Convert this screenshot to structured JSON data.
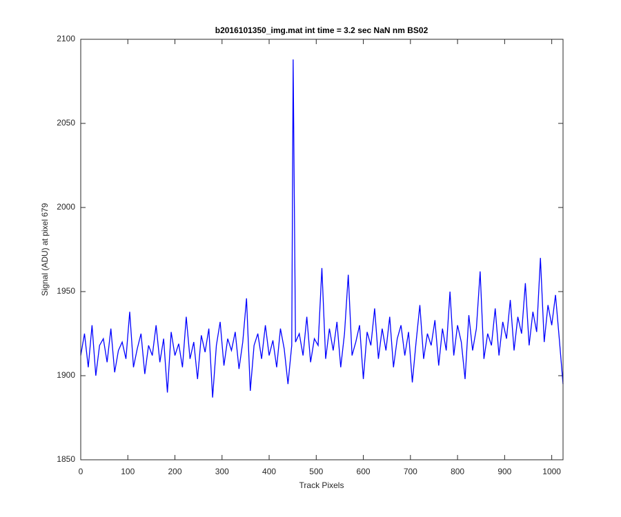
{
  "chart_data": {
    "type": "line",
    "title": "b2016101350_img.mat int time = 3.2 sec  NaN nm BS02",
    "x_label": "Track Pixels",
    "y_label": "Signal (ADU) at pixel 679",
    "xlim": [
      0,
      1024
    ],
    "xticks": [
      0,
      100,
      200,
      300,
      400,
      500,
      600,
      700,
      800,
      900,
      1000
    ],
    "ylim": [
      1850,
      2100
    ],
    "yticks": [
      1850,
      1900,
      1950,
      2000,
      2050,
      2100
    ],
    "x": [
      0,
      8,
      16,
      24,
      32,
      40,
      48,
      56,
      64,
      72,
      80,
      88,
      96,
      104,
      112,
      120,
      128,
      136,
      144,
      152,
      160,
      168,
      176,
      184,
      192,
      200,
      208,
      216,
      224,
      232,
      240,
      248,
      256,
      264,
      272,
      280,
      288,
      296,
      304,
      312,
      320,
      328,
      336,
      344,
      352,
      360,
      368,
      376,
      384,
      392,
      400,
      408,
      416,
      424,
      432,
      440,
      448,
      451,
      456,
      464,
      472,
      480,
      488,
      496,
      504,
      512,
      520,
      528,
      536,
      544,
      552,
      560,
      568,
      576,
      584,
      592,
      600,
      608,
      616,
      624,
      632,
      640,
      648,
      656,
      664,
      672,
      680,
      688,
      696,
      704,
      712,
      720,
      728,
      736,
      744,
      752,
      760,
      768,
      776,
      784,
      792,
      800,
      808,
      816,
      824,
      832,
      840,
      848,
      856,
      864,
      872,
      880,
      888,
      896,
      904,
      912,
      920,
      928,
      936,
      944,
      952,
      960,
      968,
      976,
      984,
      992,
      1000,
      1008,
      1016,
      1024
    ],
    "series": [
      {
        "name": "signal",
        "color": "#0000ff",
        "values": [
          1912,
          1925,
          1905,
          1930,
          1900,
          1918,
          1922,
          1908,
          1928,
          1902,
          1915,
          1920,
          1910,
          1938,
          1905,
          1916,
          1925,
          1901,
          1918,
          1912,
          1930,
          1908,
          1922,
          1890,
          1926,
          1912,
          1919,
          1905,
          1935,
          1910,
          1920,
          1898,
          1924,
          1914,
          1928,
          1887,
          1918,
          1932,
          1906,
          1922,
          1915,
          1926,
          1904,
          1920,
          1946,
          1891,
          1918,
          1925,
          1910,
          1930,
          1912,
          1921,
          1905,
          1928,
          1916,
          1895,
          1918,
          2088,
          1920,
          1925,
          1912,
          1935,
          1908,
          1922,
          1918,
          1964,
          1910,
          1928,
          1915,
          1932,
          1905,
          1925,
          1960,
          1912,
          1920,
          1930,
          1898,
          1926,
          1918,
          1940,
          1910,
          1928,
          1915,
          1935,
          1905,
          1922,
          1930,
          1912,
          1926,
          1896,
          1920,
          1942,
          1910,
          1925,
          1918,
          1933,
          1906,
          1928,
          1915,
          1950,
          1912,
          1930,
          1920,
          1898,
          1936,
          1915,
          1928,
          1962,
          1910,
          1925,
          1918,
          1940,
          1912,
          1932,
          1922,
          1945,
          1915,
          1935,
          1925,
          1955,
          1918,
          1938,
          1926,
          1970,
          1920,
          1942,
          1930,
          1948,
          1922,
          1895
        ]
      }
    ]
  }
}
